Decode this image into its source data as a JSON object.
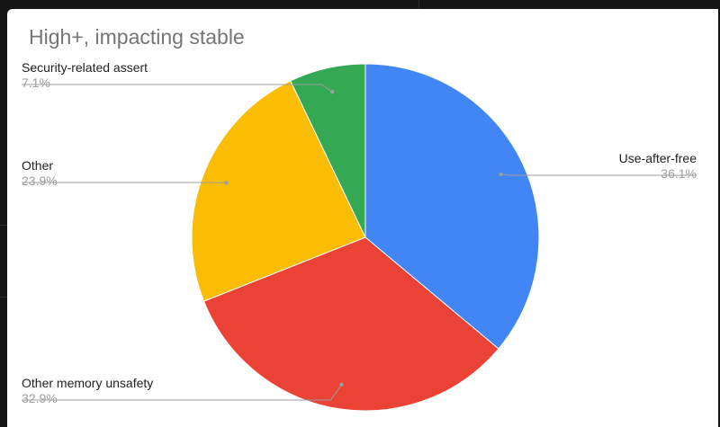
{
  "chart_data": {
    "type": "pie",
    "title": "High+, impacting stable",
    "slices": [
      {
        "label": "Use-after-free",
        "value": 36.1,
        "value_label": "36.1%",
        "color": "#4285f4",
        "label_side": "right"
      },
      {
        "label": "Other memory unsafety",
        "value": 32.9,
        "value_label": "32.9%",
        "color": "#ea4335",
        "label_side": "left"
      },
      {
        "label": "Other",
        "value": 23.9,
        "value_label": "23.9%",
        "color": "#fbbc04",
        "label_side": "left"
      },
      {
        "label": "Security-related assert",
        "value": 7.1,
        "value_label": "7.1%",
        "color": "#34a853",
        "label_side": "left"
      }
    ],
    "start_angle": "12 o'clock",
    "direction": "clockwise",
    "legend": "none"
  }
}
